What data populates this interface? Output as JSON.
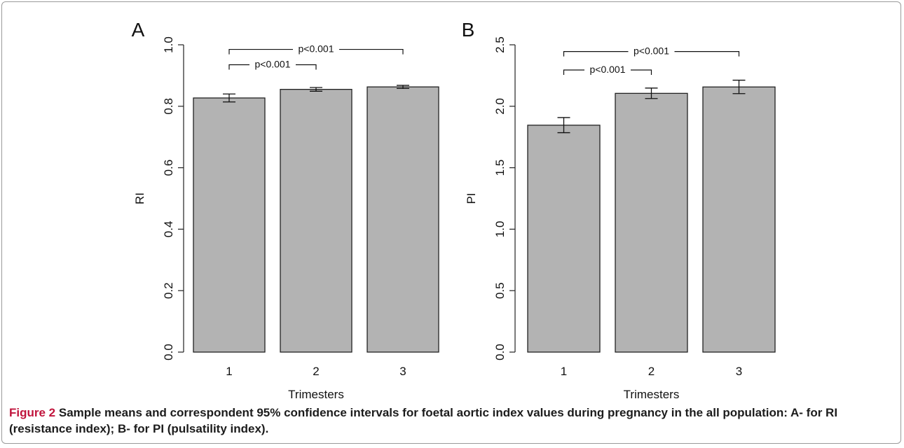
{
  "caption": {
    "label": "Figure 2",
    "text": "Sample means and correspondent 95% confidence intervals for foetal aortic index values during pregnancy in the all population: A- for RI (resistance index); B- for PI (pulsatility index)."
  },
  "chart_data": [
    {
      "panel": "A",
      "type": "bar",
      "categories": [
        "1",
        "2",
        "3"
      ],
      "values": [
        0.827,
        0.855,
        0.863
      ],
      "ci_low": [
        0.814,
        0.849,
        0.858
      ],
      "ci_high": [
        0.84,
        0.861,
        0.868
      ],
      "xlabel": "Trimesters",
      "ylabel": "RI",
      "ylim": [
        0,
        1.0
      ],
      "yticks": [
        "0.0",
        "0.2",
        "0.4",
        "0.6",
        "0.8",
        "1.0"
      ],
      "yticks_values": [
        0,
        0.2,
        0.4,
        0.6,
        0.8,
        1.0
      ],
      "bar_color": "#b3b3b3",
      "annotations": [
        {
          "from": 0,
          "to": 2,
          "text": "p<0.001",
          "level": 0.985
        },
        {
          "from": 0,
          "to": 1,
          "text": "p<0.001",
          "level": 0.935
        }
      ]
    },
    {
      "panel": "B",
      "type": "bar",
      "categories": [
        "1",
        "2",
        "3"
      ],
      "values": [
        1.846,
        2.105,
        2.157
      ],
      "ci_low": [
        1.785,
        2.063,
        2.103
      ],
      "ci_high": [
        1.908,
        2.148,
        2.212
      ],
      "xlabel": "Trimesters",
      "ylabel": "PI",
      "ylim": [
        0,
        2.5
      ],
      "yticks": [
        "0.0",
        "0.5",
        "1.0",
        "1.5",
        "2.0",
        "2.5"
      ],
      "yticks_values": [
        0,
        0.5,
        1.0,
        1.5,
        2.0,
        2.5
      ],
      "bar_color": "#b3b3b3",
      "annotations": [
        {
          "from": 0,
          "to": 2,
          "text": "p<0.001",
          "level": 2.445
        },
        {
          "from": 0,
          "to": 1,
          "text": "p<0.001",
          "level": 2.295
        }
      ]
    }
  ]
}
